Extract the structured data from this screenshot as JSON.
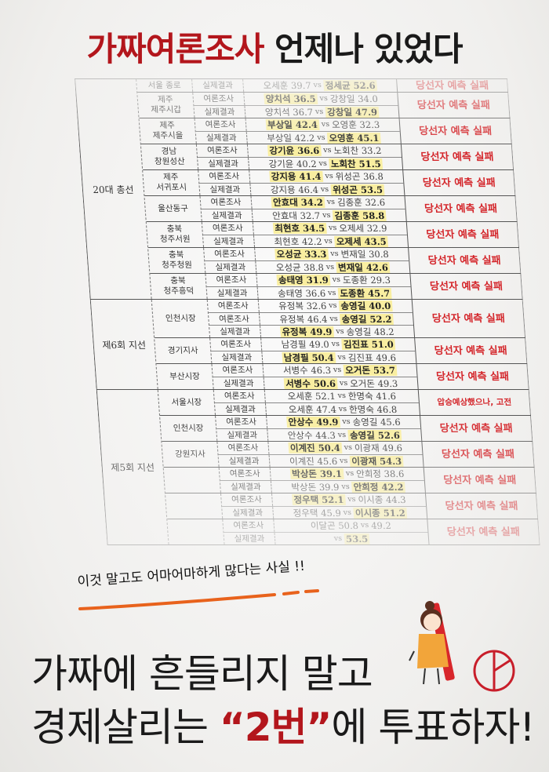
{
  "headline": {
    "red": "가짜여론조사",
    "rest": " 언제나 있었다"
  },
  "colors": {
    "accent_red": "#b3161c",
    "verdict_red": "#d4262b",
    "highlight": "#f9eea0",
    "underline_orange": "#e8621c"
  },
  "vs": "vs",
  "groups": [
    {
      "label": "20대 총선",
      "regions": [
        {
          "label": "서울 종로",
          "verdict": "당선자 예측 실패",
          "rows": [
            {
              "type": "실제결과",
              "a": {
                "name": "오세훈",
                "score": "39.7",
                "hl": false
              },
              "b": {
                "name": "정세균",
                "score": "52.6",
                "hl": true
              }
            }
          ]
        },
        {
          "label": "제주\n제주시갑",
          "verdict": "당선자 예측 실패",
          "rows": [
            {
              "type": "여론조사",
              "a": {
                "name": "양치석",
                "score": "36.5",
                "hl": true
              },
              "b": {
                "name": "강창일",
                "score": "34.0",
                "hl": false
              }
            },
            {
              "type": "실제결과",
              "a": {
                "name": "양치석",
                "score": "36.7",
                "hl": false
              },
              "b": {
                "name": "강창일",
                "score": "47.9",
                "hl": true
              }
            }
          ]
        },
        {
          "label": "제주\n제주시을",
          "verdict": "당선자 예측 실패",
          "rows": [
            {
              "type": "여론조사",
              "a": {
                "name": "부상일",
                "score": "42.4",
                "hl": true
              },
              "b": {
                "name": "오영훈",
                "score": "32.3",
                "hl": false
              }
            },
            {
              "type": "실제결과",
              "a": {
                "name": "부상일",
                "score": "42.2",
                "hl": false
              },
              "b": {
                "name": "오영훈",
                "score": "45.1",
                "hl": true
              }
            }
          ]
        },
        {
          "label": "경남\n창원성산",
          "verdict": "당선자 예측 실패",
          "rows": [
            {
              "type": "여론조사",
              "a": {
                "name": "강기윤",
                "score": "36.6",
                "hl": true
              },
              "b": {
                "name": "노회찬",
                "score": "33.2",
                "hl": false
              }
            },
            {
              "type": "실제결과",
              "a": {
                "name": "강기윤",
                "score": "40.2",
                "hl": false
              },
              "b": {
                "name": "노회찬",
                "score": "51.5",
                "hl": true
              }
            }
          ]
        },
        {
          "label": "제주\n서귀포시",
          "verdict": "당선자 예측 실패",
          "rows": [
            {
              "type": "여론조사",
              "a": {
                "name": "강지용",
                "score": "41.4",
                "hl": true
              },
              "b": {
                "name": "위성곤",
                "score": "36.8",
                "hl": false
              }
            },
            {
              "type": "실제결과",
              "a": {
                "name": "강지용",
                "score": "46.4",
                "hl": false
              },
              "b": {
                "name": "위성곤",
                "score": "53.5",
                "hl": true
              }
            }
          ]
        },
        {
          "label": "울산동구",
          "verdict": "당선자 예측 실패",
          "rows": [
            {
              "type": "여론조사",
              "a": {
                "name": "안효대",
                "score": "34.2",
                "hl": true
              },
              "b": {
                "name": "김종훈",
                "score": "32.6",
                "hl": false
              }
            },
            {
              "type": "실제결과",
              "a": {
                "name": "안효대",
                "score": "32.7",
                "hl": false
              },
              "b": {
                "name": "김종훈",
                "score": "58.8",
                "hl": true
              }
            }
          ]
        },
        {
          "label": "충북\n청주서원",
          "verdict": "당선자 예측 실패",
          "rows": [
            {
              "type": "여론조사",
              "a": {
                "name": "최현호",
                "score": "34.5",
                "hl": true
              },
              "b": {
                "name": "오제세",
                "score": "32.9",
                "hl": false
              }
            },
            {
              "type": "실제결과",
              "a": {
                "name": "최현호",
                "score": "42.2",
                "hl": false
              },
              "b": {
                "name": "오제세",
                "score": "43.5",
                "hl": true
              }
            }
          ]
        },
        {
          "label": "충북\n청주청원",
          "verdict": "당선자 예측 실패",
          "rows": [
            {
              "type": "여론조사",
              "a": {
                "name": "오성균",
                "score": "33.3",
                "hl": true
              },
              "b": {
                "name": "변재일",
                "score": "30.8",
                "hl": false
              }
            },
            {
              "type": "실제결과",
              "a": {
                "name": "오성균",
                "score": "38.8",
                "hl": false
              },
              "b": {
                "name": "변재일",
                "score": "42.6",
                "hl": true
              }
            }
          ]
        },
        {
          "label": "충북\n청주흥덕",
          "verdict": "당선자 예측 실패",
          "rows": [
            {
              "type": "여론조사",
              "a": {
                "name": "송태영",
                "score": "31.9",
                "hl": true
              },
              "b": {
                "name": "도종환",
                "score": "29.3",
                "hl": false
              }
            },
            {
              "type": "실제결과",
              "a": {
                "name": "송태영",
                "score": "36.6",
                "hl": false
              },
              "b": {
                "name": "도종환",
                "score": "45.7",
                "hl": true
              }
            }
          ]
        }
      ]
    },
    {
      "label": "제6회 지선",
      "regions": [
        {
          "label": "인천시장",
          "verdict": "당선자 예측 실패",
          "rows": [
            {
              "type": "여론조사",
              "a": {
                "name": "유정복",
                "score": "32.6",
                "hl": false
              },
              "b": {
                "name": "송영길",
                "score": "40.0",
                "hl": true
              }
            },
            {
              "type": "여론조사",
              "a": {
                "name": "유정복",
                "score": "46.4",
                "hl": false
              },
              "b": {
                "name": "송영길",
                "score": "52.2",
                "hl": true
              }
            },
            {
              "type": "실제결과",
              "a": {
                "name": "유정복",
                "score": "49.9",
                "hl": true
              },
              "b": {
                "name": "송영길",
                "score": "48.2",
                "hl": false
              }
            }
          ]
        },
        {
          "label": "경기지사",
          "verdict": "당선자 예측 실패",
          "rows": [
            {
              "type": "여론조사",
              "a": {
                "name": "남경필",
                "score": "49.0",
                "hl": false
              },
              "b": {
                "name": "김진표",
                "score": "51.0",
                "hl": true
              }
            },
            {
              "type": "실제결과",
              "a": {
                "name": "남경필",
                "score": "50.4",
                "hl": true
              },
              "b": {
                "name": "김진표",
                "score": "49.6",
                "hl": false
              }
            }
          ]
        },
        {
          "label": "부산시장",
          "verdict": "당선자 예측 실패",
          "rows": [
            {
              "type": "여론조사",
              "a": {
                "name": "서병수",
                "score": "46.3",
                "hl": false
              },
              "b": {
                "name": "오거돈",
                "score": "53.7",
                "hl": true
              }
            },
            {
              "type": "실제결과",
              "a": {
                "name": "서병수",
                "score": "50.6",
                "hl": true
              },
              "b": {
                "name": "오거돈",
                "score": "49.3",
                "hl": false
              }
            }
          ]
        }
      ]
    },
    {
      "label": "제5회 지선",
      "regions": [
        {
          "label": "서울시장",
          "verdict": "압승예상했으나, 고전",
          "small": true,
          "rows": [
            {
              "type": "여론조사",
              "a": {
                "name": "오세훈",
                "score": "52.1",
                "hl": false
              },
              "b": {
                "name": "한명숙",
                "score": "41.6",
                "hl": false
              }
            },
            {
              "type": "실제결과",
              "a": {
                "name": "오세훈",
                "score": "47.4",
                "hl": false
              },
              "b": {
                "name": "한명숙",
                "score": "46.8",
                "hl": false
              }
            }
          ]
        },
        {
          "label": "인천시장",
          "verdict": "당선자 예측 실패",
          "rows": [
            {
              "type": "여론조사",
              "a": {
                "name": "안상수",
                "score": "49.9",
                "hl": true
              },
              "b": {
                "name": "송영길",
                "score": "45.6",
                "hl": false
              }
            },
            {
              "type": "실제결과",
              "a": {
                "name": "안상수",
                "score": "44.3",
                "hl": false
              },
              "b": {
                "name": "송영길",
                "score": "52.6",
                "hl": true
              }
            }
          ]
        },
        {
          "label": "강원지사",
          "verdict": "당선자 예측 실패",
          "rows": [
            {
              "type": "여론조사",
              "a": {
                "name": "이계진",
                "score": "50.4",
                "hl": true
              },
              "b": {
                "name": "이광재",
                "score": "49.6",
                "hl": false
              }
            },
            {
              "type": "실제결과",
              "a": {
                "name": "이계진",
                "score": "45.6",
                "hl": false
              },
              "b": {
                "name": "이광재",
                "score": "54.3",
                "hl": true
              }
            }
          ]
        },
        {
          "label": "",
          "verdict": "당선자 예측 실패",
          "rows": [
            {
              "type": "여론조사",
              "a": {
                "name": "박상돈",
                "score": "39.1",
                "hl": true
              },
              "b": {
                "name": "안희정",
                "score": "38.6",
                "hl": false
              }
            },
            {
              "type": "실제결과",
              "a": {
                "name": "박상돈",
                "score": "39.9",
                "hl": false
              },
              "b": {
                "name": "안희정",
                "score": "42.2",
                "hl": true
              }
            }
          ]
        },
        {
          "label": "",
          "verdict": "당선자 예측 실패",
          "rows": [
            {
              "type": "여론조사",
              "a": {
                "name": "정우택",
                "score": "52.1",
                "hl": true
              },
              "b": {
                "name": "이시종",
                "score": "44.3",
                "hl": false
              }
            },
            {
              "type": "실제결과",
              "a": {
                "name": "정우택",
                "score": "45.9",
                "hl": false
              },
              "b": {
                "name": "이시종",
                "score": "51.2",
                "hl": true
              }
            }
          ]
        },
        {
          "label": "",
          "verdict": "당선자 예측 실패",
          "rows": [
            {
              "type": "여론조사",
              "a": {
                "name": "이달곤",
                "score": "50.8",
                "hl": false
              },
              "b": {
                "name": "",
                "score": "49.2",
                "hl": false
              }
            },
            {
              "type": "실제결과",
              "a": {
                "name": "",
                "score": "",
                "hl": false
              },
              "b": {
                "name": "",
                "score": "53.5",
                "hl": true
              }
            }
          ]
        }
      ]
    }
  ],
  "caption": "이것 말고도 어마어마하게 많다는 사실 !!",
  "bottom": {
    "line1": "가짜에 흔들리지 말고",
    "line2_pre": "경제살리는 ",
    "line2_num": "“2번”",
    "line2_post": "에 투표하자!"
  }
}
